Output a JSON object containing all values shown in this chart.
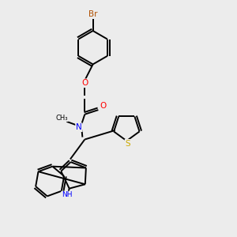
{
  "bg_color": "#ececec",
  "bond_color": "#000000",
  "atom_colors": {
    "Br": "#b05000",
    "O": "#ff0000",
    "N": "#0000ff",
    "S": "#ccaa00",
    "H": "#000000",
    "C": "#000000"
  },
  "lw": 1.4
}
